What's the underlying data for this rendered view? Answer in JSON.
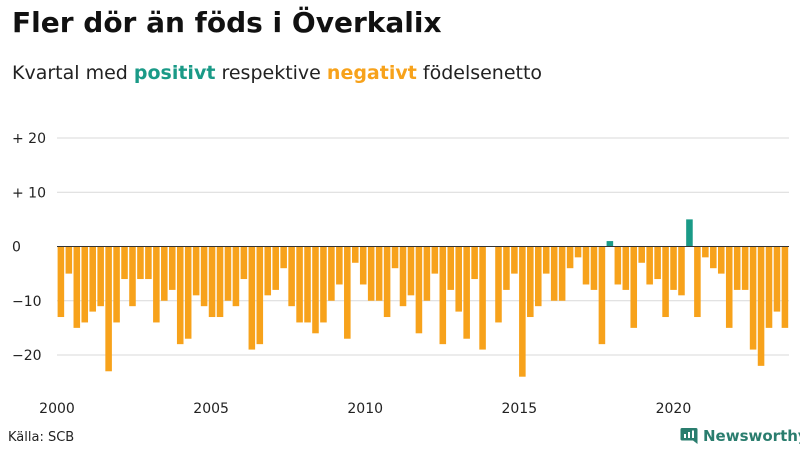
{
  "title": "Fler dör än föds i Överkalix",
  "subtitle": {
    "prefix": "Kvartal med",
    "positive_word": "positivt",
    "middle": "respektive",
    "negative_word": "negativt",
    "suffix": "födelsenetto"
  },
  "colors": {
    "positive": "#1a9a87",
    "negative": "#f7a21b",
    "grid": "#d9d9d9",
    "zero_line": "#333333"
  },
  "source": "Källa: SCB",
  "brand": "Newsworthy",
  "chart_data": {
    "type": "bar",
    "x_start": 2000,
    "x_step": 0.25,
    "xlim": [
      2000,
      2023.75
    ],
    "ylim": [
      -25,
      20
    ],
    "y_ticks": [
      20,
      10,
      0,
      -10,
      -20
    ],
    "y_tick_labels": [
      "+ 20",
      "+ 10",
      "0",
      "−10",
      "−20"
    ],
    "x_ticks": [
      2000,
      2005,
      2010,
      2015,
      2020
    ],
    "x_tick_labels": [
      "2000",
      "2005",
      "2010",
      "2015",
      "2020"
    ],
    "grid": true,
    "xlabel": "",
    "ylabel": "",
    "values": [
      -13,
      -5,
      -15,
      -14,
      -12,
      -11,
      -23,
      -14,
      -6,
      -11,
      -6,
      -6,
      -14,
      -10,
      -8,
      -18,
      -17,
      -9,
      -11,
      -13,
      -13,
      -10,
      -11,
      -6,
      -19,
      -18,
      -9,
      -8,
      -4,
      -11,
      -14,
      -14,
      -16,
      -14,
      -10,
      -7,
      -17,
      -3,
      -7,
      -10,
      -10,
      -13,
      -4,
      -11,
      -9,
      -16,
      -10,
      -5,
      -18,
      -8,
      -12,
      -17,
      -6,
      -19,
      0,
      -14,
      -8,
      -5,
      -24,
      -13,
      -11,
      -5,
      -10,
      -10,
      -4,
      -2,
      -7,
      -8,
      -18,
      1,
      -7,
      -8,
      -15,
      -3,
      -7,
      -6,
      -13,
      -8,
      -9,
      5,
      -13,
      -2,
      -4,
      -5,
      -15,
      -8,
      -8,
      -19,
      -22,
      -15,
      -12,
      -15
    ]
  }
}
